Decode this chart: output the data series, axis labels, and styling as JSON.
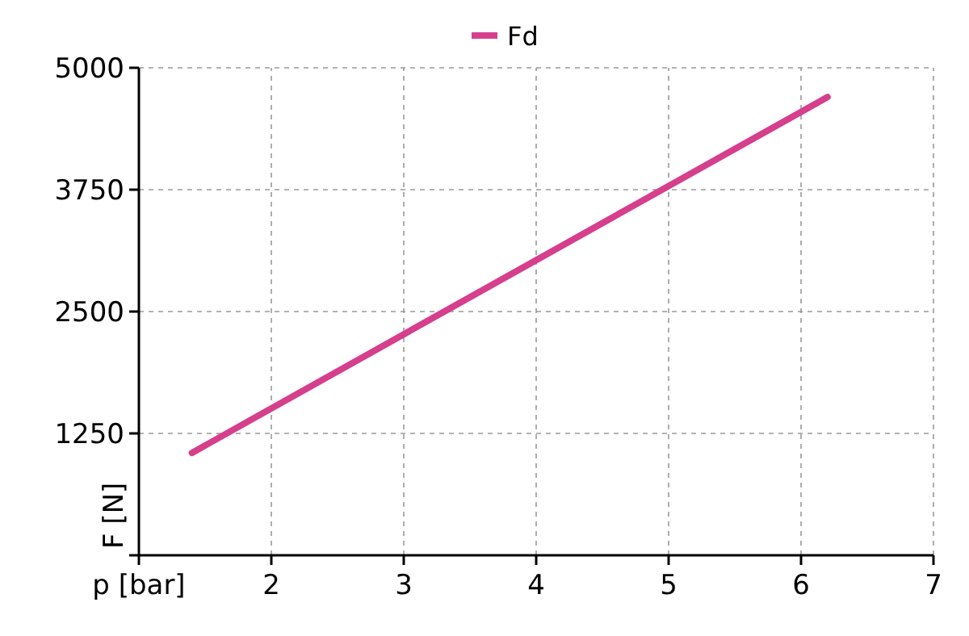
{
  "chart_data": {
    "type": "line",
    "xlabel": "p [bar]",
    "ylabel": "F [N]",
    "series": [
      {
        "name": "Fd",
        "color": "#d63f8c",
        "x": [
          1.4,
          6.2
        ],
        "values": [
          1050,
          4700
        ]
      }
    ],
    "xlim": [
      1,
      7
    ],
    "xticks": [
      {
        "value": 1,
        "label": null
      },
      2,
      3,
      4,
      5,
      6,
      7
    ],
    "ylim": [
      0,
      5000
    ],
    "yticks": [
      {
        "value": 0,
        "label": null
      },
      1250,
      2500,
      3750,
      5000
    ],
    "grid": true,
    "legend": "top",
    "line_style": "solid",
    "marker": "none"
  }
}
